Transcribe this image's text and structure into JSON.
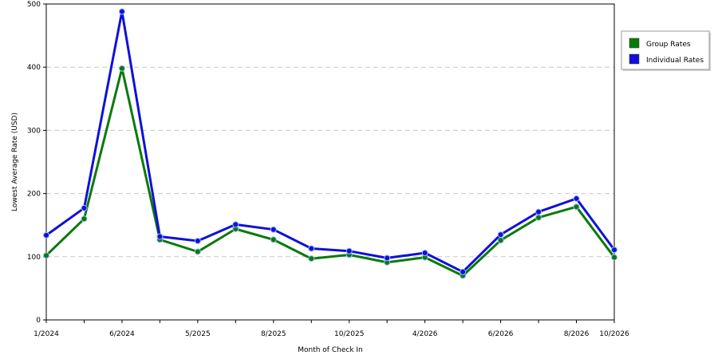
{
  "chart_data": {
    "type": "line",
    "xlabel": "Month of Check In",
    "ylabel": "Lowest Average Rate (USD)",
    "ylim": [
      0,
      500
    ],
    "yticks": [
      0,
      100,
      200,
      300,
      400,
      500
    ],
    "grid": true,
    "legend_position": "right",
    "categories": [
      "1/2024",
      "",
      "6/2024",
      "",
      "5/2025",
      "",
      "8/2025",
      "",
      "10/2025",
      "",
      "4/2026",
      "",
      "6/2026",
      "",
      "8/2026",
      "10/2026"
    ],
    "series": [
      {
        "name": "Group Rates",
        "color": "#0a7a0a",
        "values": [
          102,
          160,
          398,
          127,
          108,
          144,
          127,
          97,
          103,
          91,
          99,
          70,
          126,
          162,
          179,
          99
        ]
      },
      {
        "name": "Individual Rates",
        "color": "#1010d8",
        "values": [
          134,
          177,
          488,
          132,
          125,
          151,
          143,
          113,
          109,
          98,
          106,
          76,
          135,
          171,
          192,
          111
        ]
      }
    ]
  }
}
